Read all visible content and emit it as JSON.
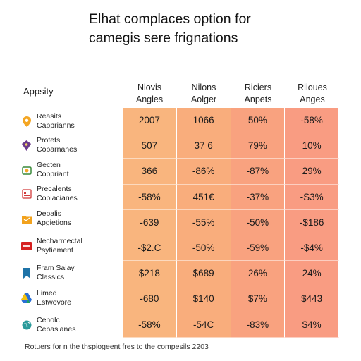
{
  "title": [
    "Elhat complaces option for",
    "camegis sere frignations"
  ],
  "corner_label": "Appsity",
  "columns": [
    {
      "line1": "Nlovis",
      "line2": "Angles"
    },
    {
      "line1": "Nilons",
      "line2": "Aolger"
    },
    {
      "line1": "Riciers",
      "line2": "Anpets"
    },
    {
      "line1": "Rlioues",
      "line2": "Anges"
    }
  ],
  "rows": [
    {
      "label1": "Reasits",
      "label2": "Capprianns",
      "icon": "location-pin-icon",
      "icon_color": "#f4a623",
      "values": [
        "2007",
        "1066",
        "50%",
        "-58%"
      ]
    },
    {
      "label1": "Protets",
      "label2": "Coparnanes",
      "icon": "shield-icon",
      "icon_color": "#6a3a8a",
      "values": [
        "507",
        "37 6",
        "79%",
        "10%"
      ]
    },
    {
      "label1": "Gecten",
      "label2": "Coppriant",
      "icon": "shopping-bag-icon",
      "icon_color": "#3a8a3a",
      "values": [
        "366",
        "-86%",
        "-87%",
        "29%"
      ]
    },
    {
      "label1": "Precalents",
      "label2": "Copiacianes",
      "icon": "document-icon",
      "icon_color": "#d23a3a",
      "values": [
        "-58%",
        "451€",
        "-37%",
        "-S3%"
      ]
    },
    {
      "label1": "Depalis",
      "label2": "Apgietions",
      "icon": "folder-icon",
      "icon_color": "#f2a21d",
      "values": [
        "-639",
        "-55%",
        "-50%",
        "-$186"
      ]
    },
    {
      "label1": "Necharmectal",
      "label2": "Psytiement",
      "icon": "brand-tile-icon",
      "icon_color": "#d62020",
      "values": [
        "-$2.C",
        "-50%",
        "-59%",
        "-$4%"
      ]
    },
    {
      "label1": "Fram Salay",
      "label2": "Classics",
      "icon": "bookmark-icon",
      "icon_color": "#1e73a8",
      "values": [
        "$218",
        "$689",
        "26%",
        "24%"
      ]
    },
    {
      "label1": "Limed",
      "label2": "Estwovore",
      "icon": "triangle-logo-icon",
      "icon_color": "#2a6fd6",
      "values": [
        "-680",
        "$140",
        "$7%",
        "$443"
      ]
    },
    {
      "label1": "Cenolc",
      "label2": "Cepasianes",
      "icon": "globe-icon",
      "icon_color": "#2a9a9a",
      "values": [
        "-58%",
        "-54C",
        "-83%",
        "$4%"
      ]
    }
  ],
  "footer": "Rotuers for n the thspiogeent fres to the compesils 2203"
}
